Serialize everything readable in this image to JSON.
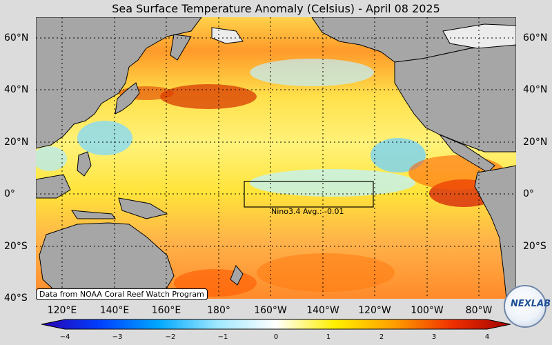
{
  "title": "Sea Surface Temperature Anomaly (Celsius) - April 08 2025",
  "map": {
    "lon_range_deg_east": [
      110,
      290
    ],
    "lat_range": [
      -40,
      68
    ],
    "lat_labels": [
      "60°N",
      "40°N",
      "20°N",
      "0°",
      "20°S",
      "40°S"
    ],
    "lon_labels": [
      "120°E",
      "140°E",
      "160°E",
      "180°",
      "160°W",
      "140°W",
      "120°W",
      "100°W",
      "80°W"
    ],
    "nino34_box": {
      "lon": [
        -170,
        -120
      ],
      "lat": [
        -5,
        5
      ]
    },
    "nino34_text": "Nino3.4 Avg.: -0.01",
    "credit": "Data from NOAA Coral Reef Watch Program"
  },
  "colorbar": {
    "ticks": [
      "−4",
      "−3",
      "−2",
      "−1",
      "0",
      "1",
      "2",
      "3",
      "4"
    ],
    "stops": [
      "#2a00b0",
      "#0040ff",
      "#00a8ff",
      "#9fe8ff",
      "#ffffff",
      "#fff000",
      "#ffa000",
      "#f03000",
      "#a00000"
    ]
  },
  "logo": {
    "text": "NEXLAB"
  }
}
